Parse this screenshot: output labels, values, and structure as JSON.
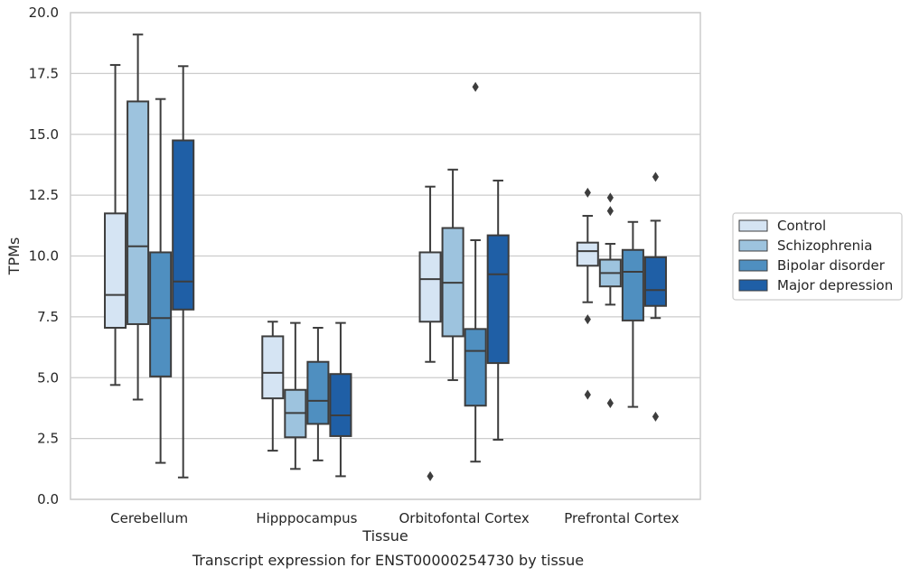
{
  "chart_data": {
    "type": "boxplot",
    "title": "Transcript expression for ENST00000254730 by tissue",
    "xlabel": "Tissue",
    "ylabel": "TPMs",
    "ylim": [
      0,
      20
    ],
    "yticks": [
      "0.0",
      "2.5",
      "5.0",
      "7.5",
      "10.0",
      "12.5",
      "15.0",
      "17.5",
      "20.0"
    ],
    "grid": "horizontal",
    "legend_position": "right",
    "categories": [
      "Cerebellum",
      "Hipppocampus",
      "Orbitofontal Cortex",
      "Prefrontal Cortex"
    ],
    "series": [
      {
        "name": "Control",
        "color": "#d5e4f3",
        "boxes": [
          {
            "whisker_low": 4.7,
            "q1": 7.05,
            "median": 8.4,
            "q3": 11.75,
            "whisker_high": 17.85,
            "outliers": []
          },
          {
            "whisker_low": 2.0,
            "q1": 4.15,
            "median": 5.2,
            "q3": 6.7,
            "whisker_high": 7.3,
            "outliers": []
          },
          {
            "whisker_low": 5.65,
            "q1": 7.3,
            "median": 9.05,
            "q3": 10.15,
            "whisker_high": 12.85,
            "outliers": [
              0.95
            ]
          },
          {
            "whisker_low": 8.1,
            "q1": 9.6,
            "median": 10.2,
            "q3": 10.55,
            "whisker_high": 11.65,
            "outliers": [
              12.6,
              7.4,
              4.3
            ]
          }
        ]
      },
      {
        "name": "Schizophrenia",
        "color": "#9dc3de",
        "boxes": [
          {
            "whisker_low": 4.1,
            "q1": 7.2,
            "median": 10.4,
            "q3": 16.35,
            "whisker_high": 19.1,
            "outliers": []
          },
          {
            "whisker_low": 1.25,
            "q1": 2.55,
            "median": 3.55,
            "q3": 4.5,
            "whisker_high": 7.25,
            "outliers": []
          },
          {
            "whisker_low": 4.9,
            "q1": 6.7,
            "median": 8.9,
            "q3": 11.15,
            "whisker_high": 13.55,
            "outliers": []
          },
          {
            "whisker_low": 8.0,
            "q1": 8.75,
            "median": 9.3,
            "q3": 9.85,
            "whisker_high": 10.5,
            "outliers": [
              12.4,
              11.85,
              3.95
            ]
          }
        ]
      },
      {
        "name": "Bipolar disorder",
        "color": "#4f8fc0",
        "boxes": [
          {
            "whisker_low": 1.5,
            "q1": 5.05,
            "median": 7.45,
            "q3": 10.15,
            "whisker_high": 16.45,
            "outliers": []
          },
          {
            "whisker_low": 1.6,
            "q1": 3.1,
            "median": 4.05,
            "q3": 5.65,
            "whisker_high": 7.05,
            "outliers": []
          },
          {
            "whisker_low": 1.55,
            "q1": 3.85,
            "median": 6.1,
            "q3": 7.0,
            "whisker_high": 10.65,
            "outliers": [
              16.95
            ]
          },
          {
            "whisker_low": 3.8,
            "q1": 7.35,
            "median": 9.35,
            "q3": 10.25,
            "whisker_high": 11.4,
            "outliers": []
          }
        ]
      },
      {
        "name": "Major depression",
        "color": "#1f5fa6",
        "boxes": [
          {
            "whisker_low": 0.9,
            "q1": 7.8,
            "median": 8.95,
            "q3": 14.75,
            "whisker_high": 17.8,
            "outliers": []
          },
          {
            "whisker_low": 0.95,
            "q1": 2.6,
            "median": 3.45,
            "q3": 5.15,
            "whisker_high": 7.25,
            "outliers": []
          },
          {
            "whisker_low": 2.45,
            "q1": 5.6,
            "median": 9.25,
            "q3": 10.85,
            "whisker_high": 13.1,
            "outliers": []
          },
          {
            "whisker_low": 7.45,
            "q1": 7.95,
            "median": 8.6,
            "q3": 9.95,
            "whisker_high": 11.45,
            "outliers": [
              13.25,
              3.4
            ]
          }
        ]
      }
    ]
  }
}
